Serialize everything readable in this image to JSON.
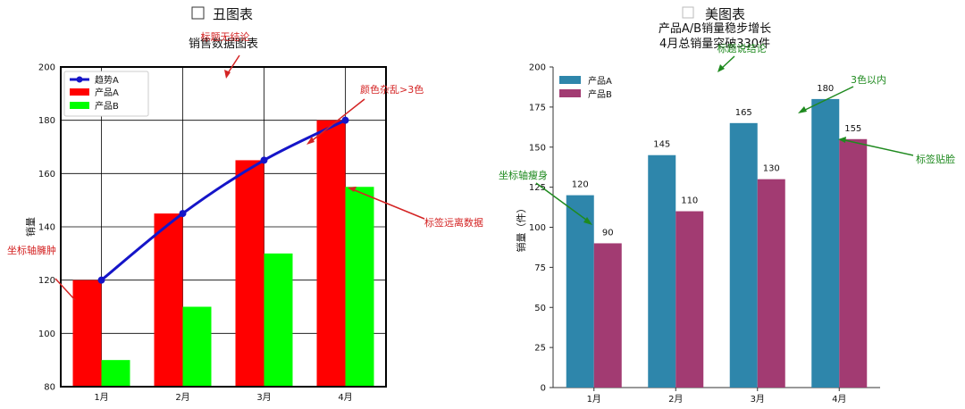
{
  "chart_data": [
    {
      "type": "bar",
      "panel_title": "丑图表",
      "title": "销售数据图表",
      "xlabel": "",
      "ylabel": "销量",
      "categories": [
        "1月",
        "2月",
        "3月",
        "4月"
      ],
      "ylim": [
        80,
        200
      ],
      "yticks": [
        "80",
        "100",
        "120",
        "140",
        "160",
        "180",
        "200"
      ],
      "grid": true,
      "legend_position": "top-left",
      "series": [
        {
          "name": "产品A",
          "kind": "bar",
          "color": "#ff0000",
          "values": [
            120,
            145,
            165,
            180
          ]
        },
        {
          "name": "产品B",
          "kind": "bar",
          "color": "#00ff00",
          "values": [
            90,
            110,
            130,
            155
          ]
        },
        {
          "name": "趋势A",
          "kind": "line",
          "color": "#1515c8",
          "values": [
            120,
            145,
            165,
            180
          ]
        }
      ],
      "annotations": [
        "标题无结论",
        "颜色杂乱>3色",
        "标签远离数据",
        "坐标轴臃肿"
      ]
    },
    {
      "type": "bar",
      "panel_title": "美图表",
      "title": "产品A/B销量稳步增长\n4月总销量突破330件",
      "xlabel": "",
      "ylabel": "销量（件）",
      "categories": [
        "1月",
        "2月",
        "3月",
        "4月"
      ],
      "ylim": [
        0,
        200
      ],
      "yticks": [
        "0",
        "25",
        "50",
        "75",
        "100",
        "125",
        "150",
        "175",
        "200"
      ],
      "grid": false,
      "legend_position": "top-left",
      "series": [
        {
          "name": "产品A",
          "kind": "bar",
          "color": "#2e86ab",
          "values": [
            120,
            145,
            165,
            180
          ]
        },
        {
          "name": "产品B",
          "kind": "bar",
          "color": "#a23b72",
          "values": [
            90,
            110,
            130,
            155
          ]
        }
      ],
      "data_labels": true,
      "annotations": [
        "标题说结论",
        "3色以内",
        "标签贴脸",
        "坐标轴瘦身"
      ]
    }
  ],
  "colors": {
    "red_annotation": "#d42424",
    "green_annotation": "#1f8a1f"
  }
}
